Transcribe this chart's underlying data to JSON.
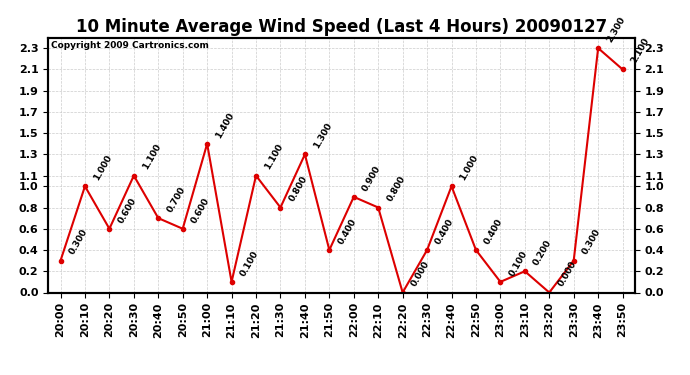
{
  "title": "10 Minute Average Wind Speed (Last 4 Hours) 20090127",
  "copyright": "Copyright 2009 Cartronics.com",
  "x_labels": [
    "20:00",
    "20:10",
    "20:20",
    "20:30",
    "20:40",
    "20:50",
    "21:00",
    "21:10",
    "21:20",
    "21:30",
    "21:40",
    "21:50",
    "22:00",
    "22:10",
    "22:20",
    "22:30",
    "22:40",
    "22:50",
    "23:00",
    "23:10",
    "23:20",
    "23:30",
    "23:40",
    "23:50"
  ],
  "y_values": [
    0.3,
    1.0,
    0.6,
    1.1,
    0.7,
    0.6,
    1.4,
    0.1,
    1.1,
    0.8,
    1.3,
    0.4,
    0.9,
    0.8,
    0.0,
    0.4,
    1.0,
    0.4,
    0.1,
    0.2,
    0.0,
    0.3,
    2.3,
    2.1
  ],
  "point_labels": [
    "0.300",
    "1.000",
    "0.600",
    "1.100",
    "0.700",
    "0.600",
    "1.400",
    "0.100",
    "1.100",
    "0.800",
    "1.300",
    "0.400",
    "0.900",
    "0.800",
    "0.000",
    "0.400",
    "1.000",
    "0.400",
    "0.100",
    "0.200",
    "0.000",
    "0.300",
    "2.300",
    "2.100"
  ],
  "line_color": "#dd0000",
  "marker_color": "#dd0000",
  "background_color": "#ffffff",
  "grid_color": "#cccccc",
  "ylim": [
    0.0,
    2.4
  ],
  "yticks": [
    0.0,
    0.2,
    0.4,
    0.6,
    0.8,
    1.0,
    1.1,
    1.3,
    1.5,
    1.7,
    1.9,
    2.1,
    2.3
  ],
  "title_fontsize": 12,
  "tick_fontsize": 8,
  "label_fontsize": 6.5
}
